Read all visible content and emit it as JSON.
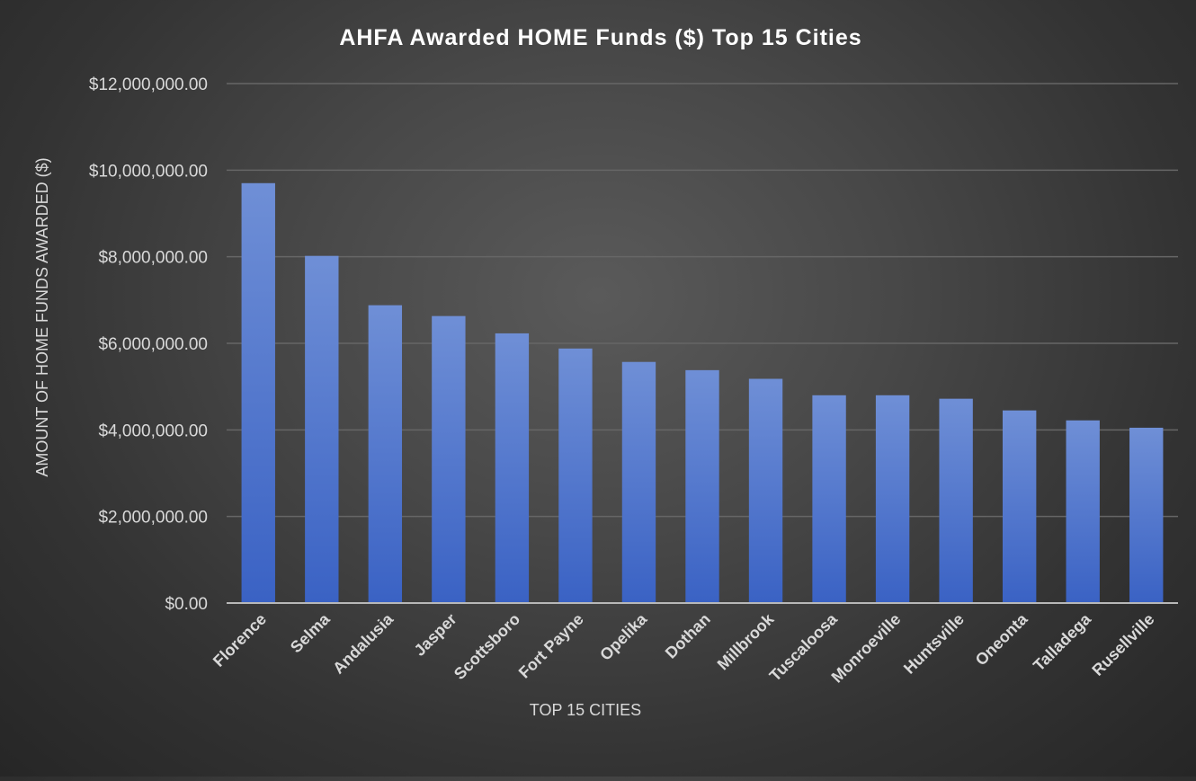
{
  "chart_data": {
    "type": "bar",
    "title": "AHFA Awarded HOME Funds ($) Top 15 Cities",
    "xlabel": "TOP 15 CITIES",
    "ylabel": "AMOUNT OF HOME FUNDS AWARDED ($)",
    "categories": [
      "Florence",
      "Selma",
      "Andalusia",
      "Jasper",
      "Scottsboro",
      "Fort Payne",
      "Opelika",
      "Dothan",
      "Millbrook",
      "Tuscaloosa",
      "Monroeville",
      "Huntsville",
      "Oneonta",
      "Talladega",
      "Rusellville"
    ],
    "values": [
      9700000,
      8020000,
      6880000,
      6630000,
      6230000,
      5880000,
      5570000,
      5380000,
      5180000,
      4800000,
      4800000,
      4720000,
      4450000,
      4220000,
      4050000
    ],
    "ylim": [
      0,
      12000000
    ],
    "yticks": [
      0,
      2000000,
      4000000,
      6000000,
      8000000,
      10000000,
      12000000
    ],
    "ytick_labels": [
      "$0.00",
      "$2,000,000.00",
      "$4,000,000.00",
      "$6,000,000.00",
      "$8,000,000.00",
      "$10,000,000.00",
      "$12,000,000.00"
    ],
    "grid": true,
    "legend": "none",
    "colors": {
      "bar_top": "#6f8fd6",
      "bar_bottom": "#3a62c4",
      "grid": "#666666",
      "axis": "#b8b8b8",
      "text": "#ffffff",
      "tick_text": "#d9d9d9"
    }
  }
}
